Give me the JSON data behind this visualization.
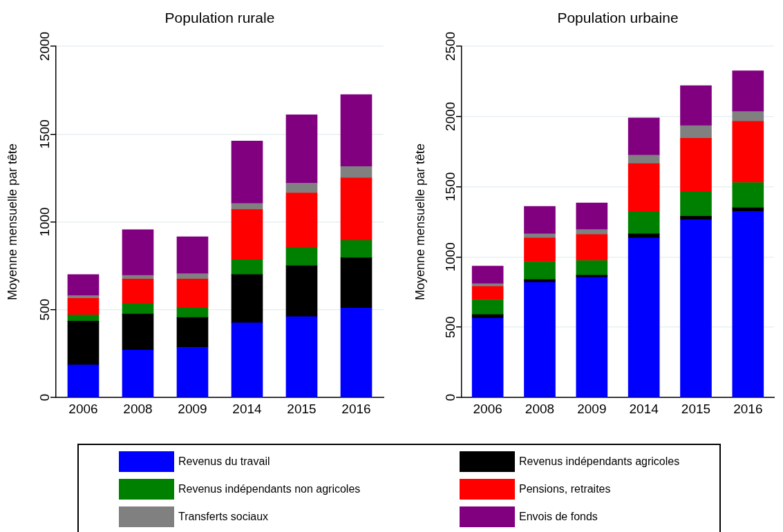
{
  "chart_data": [
    {
      "type": "bar",
      "title": "Population rurale",
      "ylabel": "Moyenne mensuelle par tête",
      "stacked": true,
      "grid": "y",
      "legend": "bottom",
      "categories": [
        "2006",
        "2008",
        "2009",
        "2014",
        "2015",
        "2016"
      ],
      "ylim": [
        0,
        2000
      ],
      "yticks": [
        0,
        500,
        1000,
        1500,
        2000
      ],
      "series": [
        {
          "name": "Revenus du travail",
          "color": "#0000ff",
          "values": [
            185,
            270,
            285,
            425,
            460,
            510
          ]
        },
        {
          "name": "Revenus indépendants agricoles",
          "color": "#000000",
          "values": [
            250,
            205,
            170,
            275,
            290,
            285
          ]
        },
        {
          "name": "Revenus indépendants non agricoles",
          "color": "#008000",
          "values": [
            35,
            60,
            55,
            85,
            105,
            100
          ]
        },
        {
          "name": "Pensions, retraites",
          "color": "#ff0000",
          "values": [
            95,
            140,
            165,
            285,
            310,
            355
          ]
        },
        {
          "name": "Transferts sociaux",
          "color": "#808080",
          "values": [
            15,
            20,
            30,
            35,
            55,
            65
          ]
        },
        {
          "name": "Envois de fonds",
          "color": "#800080",
          "values": [
            120,
            260,
            210,
            355,
            390,
            410
          ]
        }
      ]
    },
    {
      "type": "bar",
      "title": "Population urbaine",
      "ylabel": "Moyenne mensuelle par tête",
      "stacked": true,
      "grid": "y",
      "categories": [
        "2006",
        "2008",
        "2009",
        "2014",
        "2015",
        "2016"
      ],
      "ylim": [
        0,
        2500
      ],
      "yticks": [
        0,
        500,
        1000,
        1500,
        2000,
        2500
      ],
      "series": [
        {
          "color": "#0000ff",
          "values": [
            565,
            820,
            855,
            1135,
            1265,
            1325
          ]
        },
        {
          "color": "#000000",
          "values": [
            25,
            20,
            15,
            30,
            25,
            25
          ]
        },
        {
          "color": "#008000",
          "values": [
            105,
            125,
            105,
            155,
            175,
            180
          ]
        },
        {
          "color": "#ff0000",
          "values": [
            95,
            170,
            185,
            345,
            380,
            435
          ]
        },
        {
          "color": "#808080",
          "values": [
            20,
            30,
            35,
            60,
            90,
            70
          ]
        },
        {
          "color": "#800080",
          "values": [
            125,
            195,
            190,
            265,
            285,
            290
          ]
        }
      ]
    }
  ]
}
